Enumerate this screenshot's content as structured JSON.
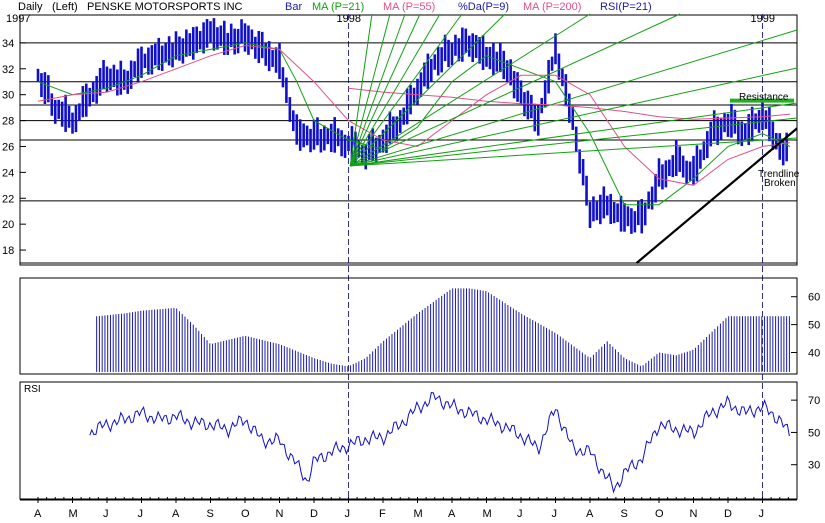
{
  "header": {
    "interval": "Daily",
    "axis_side": "(Left)",
    "symbol": "PENSKE MOTORSPORTS INC",
    "legend": [
      {
        "label": "Bar",
        "color": "#1a1aa8"
      },
      {
        "label": "MA (P=21)",
        "color": "#13a013"
      },
      {
        "label": "MA (P=55)",
        "color": "#e0508c"
      },
      {
        "label": "%Da(P=9)",
        "color": "#1a1aa8"
      },
      {
        "label": "MA (P=200)",
        "color": "#e0508c"
      },
      {
        "label": "RSI(P=21)",
        "color": "#1a1aa8"
      }
    ]
  },
  "colors": {
    "price": "#1010c8",
    "ma21": "#13a013",
    "ma55": "#e0508c",
    "ma200": "#e0508c",
    "fan": "#13a013",
    "resistance": "#22b022",
    "trendline": "#000000",
    "text": "#000000"
  },
  "chart_data": [
    {
      "type": "line",
      "panel": "price",
      "y_axis_side": "left",
      "ylim": [
        17,
        36
      ],
      "y_ticks": [
        34,
        32,
        30,
        28,
        26,
        24,
        22,
        20,
        18
      ],
      "horizontal_lines": [
        34,
        31,
        29.2,
        28,
        26.5,
        21.8,
        17
      ],
      "x_month_labels": [
        "A",
        "M",
        "J",
        "J",
        "A",
        "S",
        "O",
        "N",
        "D",
        "J",
        "F",
        "M",
        "A",
        "M",
        "J",
        "J",
        "A",
        "S",
        "O",
        "N",
        "D",
        "J"
      ],
      "year_labels": [
        "1997",
        "1998",
        "1999"
      ],
      "year_boundary_months": [
        9,
        21
      ],
      "series": [
        {
          "name": "Bar",
          "x": [
            0,
            0.5,
            1,
            1.5,
            2,
            2.5,
            3,
            3.5,
            4,
            4.5,
            5,
            5.5,
            6,
            6.5,
            7,
            7.5,
            8,
            8.5,
            9,
            9.5,
            10,
            10.5,
            11,
            11.5,
            12,
            12.5,
            13,
            13.5,
            14,
            14.5,
            15,
            15.5,
            16,
            16.5,
            17,
            17.5,
            18,
            18.5,
            19,
            19.5,
            20,
            20.5,
            21,
            21.5,
            21.8
          ],
          "values": [
            31.5,
            29,
            28,
            30,
            31.5,
            31,
            32.5,
            33,
            33.5,
            34,
            34.8,
            34.2,
            34.5,
            33.5,
            32.5,
            27,
            26.8,
            26.8,
            26.2,
            25.5,
            26.5,
            28,
            30.5,
            32.5,
            33.5,
            34,
            33,
            32.5,
            30,
            28,
            33.5,
            28,
            21,
            21.5,
            20.5,
            20.5,
            23.5,
            25,
            24,
            27,
            28,
            27,
            28.5,
            26,
            25.5
          ]
        },
        {
          "name": "MA (P=21)",
          "x": [
            0,
            1,
            2,
            3,
            4,
            5,
            6,
            7,
            7.5,
            8,
            9,
            10,
            11,
            12,
            13,
            14,
            15,
            16,
            17,
            18,
            19,
            20,
            21,
            21.8
          ],
          "values": [
            31,
            30,
            30.5,
            31.5,
            33,
            33.5,
            34,
            33.5,
            31,
            28,
            26.5,
            25.8,
            27.5,
            31,
            33,
            32,
            31,
            27,
            21.5,
            21.5,
            23.5,
            26,
            27,
            26
          ]
        },
        {
          "name": "MA (P=55)",
          "x": [
            0,
            1,
            2,
            3,
            4,
            5,
            6,
            7,
            8,
            9,
            10,
            11,
            12,
            13,
            14,
            15,
            16,
            17,
            18,
            19,
            20,
            21,
            21.8
          ],
          "values": [
            29.5,
            30,
            30.2,
            31,
            32,
            33,
            33.8,
            33.5,
            31,
            28,
            26.5,
            26,
            28,
            30,
            31.5,
            31.5,
            30,
            26,
            23.5,
            23,
            25,
            26,
            26.3
          ]
        },
        {
          "name": "MA (P=200)",
          "x": [
            9,
            10,
            11,
            12,
            13,
            14,
            15,
            16,
            17,
            18,
            19,
            20,
            21,
            21.8
          ],
          "values": [
            30.5,
            30.2,
            30,
            29.8,
            29.5,
            29.3,
            29.2,
            29,
            28.7,
            28.3,
            28.1,
            28.2,
            28.3,
            28.5
          ]
        }
      ],
      "annotations": [
        {
          "text": "Resistance",
          "level": 29.7
        },
        {
          "text": "Trendline",
          "level": 24.4
        },
        {
          "text": "Broken",
          "level": 23.4
        }
      ]
    },
    {
      "type": "bar",
      "panel": "volume",
      "y_axis_side": "right",
      "ylim": [
        33,
        66
      ],
      "y_ticks": [
        60,
        50,
        40
      ],
      "series": [
        {
          "name": "%Da(P=9)",
          "x": [
            1.7,
            2.5,
            3,
            4,
            4.5,
            5,
            6,
            7,
            8,
            8.5,
            9,
            9.5,
            10,
            11,
            12,
            12.5,
            13,
            14,
            15,
            16,
            16.5,
            17,
            17.5,
            18,
            18.5,
            19,
            20,
            21,
            21.8
          ],
          "values": [
            53,
            54,
            55,
            56,
            50,
            43,
            46,
            43,
            38,
            36,
            35,
            38,
            44,
            54,
            63,
            63,
            62,
            54,
            47,
            38,
            44,
            38,
            35,
            40,
            39,
            41,
            53,
            53,
            53
          ]
        }
      ]
    },
    {
      "type": "line",
      "panel": "rsi",
      "title": "RSI",
      "y_axis_side": "right",
      "ylim": [
        10,
        80
      ],
      "y_ticks": [
        70,
        50,
        30
      ],
      "series": [
        {
          "name": "RSI(P=21)",
          "x": [
            1.5,
            2,
            2.5,
            3,
            3.5,
            4,
            4.5,
            5,
            5.5,
            6,
            6.5,
            7,
            7.5,
            7.8,
            8,
            8.5,
            9,
            9.5,
            10,
            10.5,
            11,
            11.5,
            12,
            12.5,
            13,
            13.5,
            14,
            14.5,
            15,
            15.5,
            16,
            16.3,
            16.7,
            17,
            17.5,
            18,
            18.5,
            19,
            19.5,
            20,
            20.5,
            21,
            21.5,
            21.8
          ],
          "values": [
            50,
            55,
            58,
            62,
            58,
            60,
            56,
            55,
            52,
            58,
            45,
            45,
            30,
            20,
            32,
            38,
            42,
            46,
            47,
            55,
            65,
            72,
            66,
            62,
            58,
            54,
            48,
            40,
            65,
            40,
            38,
            28,
            15,
            25,
            34,
            55,
            52,
            50,
            62,
            68,
            62,
            66,
            58,
            48
          ]
        }
      ]
    }
  ],
  "drawn_text": {
    "resistance": "Resistance",
    "trendline": "Trendline",
    "broken": "Broken",
    "rsi_title": "RSI"
  }
}
